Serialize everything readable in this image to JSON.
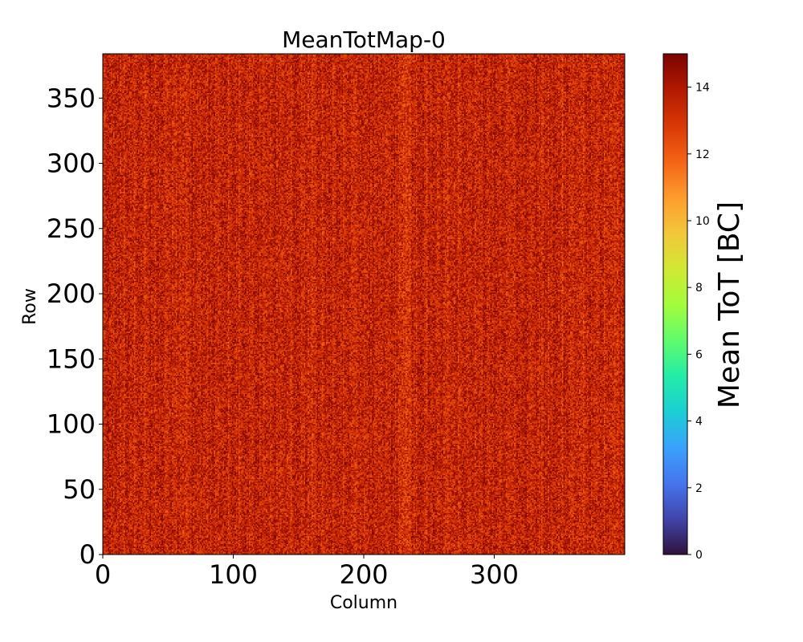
{
  "chart_data": {
    "type": "heatmap",
    "title": "MeanTotMap-0",
    "xlabel": "Column",
    "ylabel": "Row",
    "xlim": [
      0,
      400
    ],
    "ylim": [
      0,
      384
    ],
    "x_ticks": [
      0,
      100,
      200,
      300
    ],
    "y_ticks": [
      0,
      50,
      100,
      150,
      200,
      250,
      300,
      350
    ],
    "colorbar": {
      "label": "Mean ToT [BC]",
      "range": [
        0,
        15
      ],
      "ticks": [
        0,
        2,
        4,
        6,
        8,
        10,
        12,
        14
      ],
      "colormap": "turbo",
      "colors": [
        "#30123b",
        "#4145ab",
        "#4675ed",
        "#39a2fc",
        "#1bcfd4",
        "#24eca6",
        "#61fc6c",
        "#a4fc3b",
        "#d1e834",
        "#f3c63a",
        "#fe9b2d",
        "#f36315",
        "#d93806",
        "#b11901",
        "#7a0402"
      ]
    },
    "values_summary": {
      "typical_range": [
        12,
        15
      ],
      "dominant_value": 13.5,
      "note": "Nearly uniform noisy map with faint vertical column stripes"
    }
  }
}
